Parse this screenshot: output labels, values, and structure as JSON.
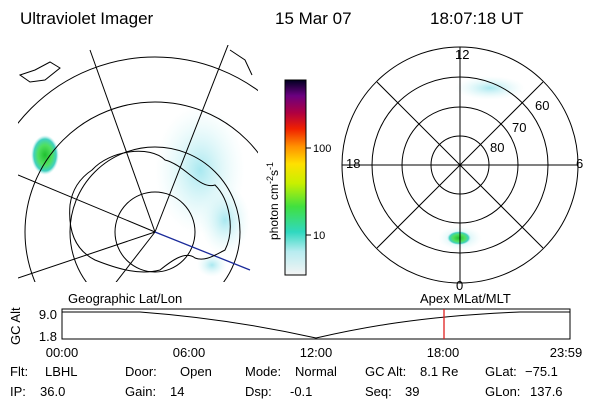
{
  "header": {
    "title": "Ultraviolet Imager",
    "date": "15 Mar 07",
    "time": "18:07:18 UT"
  },
  "colorbar": {
    "label": "photon cm",
    "exp1": "-2",
    "unit2": "s",
    "exp2": "-1",
    "ticks": [
      "100",
      "10"
    ]
  },
  "right_map": {
    "mlt_labels": [
      "12",
      "18",
      "6",
      "0"
    ],
    "lat_labels": [
      "60",
      "70",
      "80"
    ]
  },
  "altitude": {
    "left_label": "Geographic Lat/Lon",
    "right_label": "Apex  MLat/MLT",
    "axis_label": "GC Alt",
    "yticks": [
      "9.0",
      "1.8"
    ],
    "xticks": [
      "00:00",
      "06:00",
      "12:00",
      "18:00",
      "23:59"
    ]
  },
  "status": [
    [
      {
        "label": "Flt:",
        "value": "LBHL"
      },
      {
        "label": "Door:",
        "value": "Open"
      },
      {
        "label": "Mode:",
        "value": "Normal"
      },
      {
        "label": "GC Alt:",
        "value": "8.1 Re"
      },
      {
        "label": "GLat:",
        "value": "−75.1"
      }
    ],
    [
      {
        "label": "IP:",
        "value": "36.0"
      },
      {
        "label": "Gain:",
        "value": "14"
      },
      {
        "label": "Dsp:",
        "value": "-0.1"
      },
      {
        "label": "Seq:",
        "value": "39"
      },
      {
        "label": "GLon:",
        "value": "137.6"
      }
    ]
  ]
}
